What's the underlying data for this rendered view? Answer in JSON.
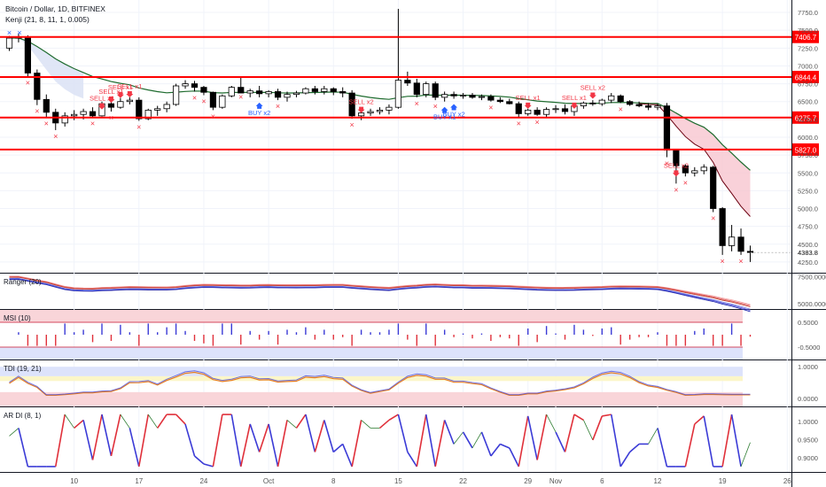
{
  "header": {
    "symbol_line": "Bitcoin / Dollar, 1D, BITFINEX",
    "indicator_line": "Kenji (21, 8, 11, 1, 0.005)"
  },
  "colors": {
    "up_body": "#ffffff",
    "down_body": "#000000",
    "sr_line": "#ff0000",
    "signal": "#f23645",
    "buy": "#2962ff",
    "ema_line": "#1e6b2e",
    "grid": "#f0f3fa",
    "fast_ma": "#6b0010",
    "band_fill": "#f7c6cf"
  },
  "x_axis": {
    "ticks": [
      {
        "label": "10",
        "i": 7
      },
      {
        "label": "17",
        "i": 14
      },
      {
        "label": "24",
        "i": 21
      },
      {
        "label": "Oct",
        "i": 28
      },
      {
        "label": "8",
        "i": 35
      },
      {
        "label": "15",
        "i": 42
      },
      {
        "label": "22",
        "i": 49
      },
      {
        "label": "29",
        "i": 56
      },
      {
        "label": "Nov",
        "i": 59
      },
      {
        "label": "6",
        "i": 64
      },
      {
        "label": "12",
        "i": 70
      },
      {
        "label": "19",
        "i": 77
      },
      {
        "label": "26",
        "i": 84
      }
    ]
  },
  "chart_data": [
    {
      "type": "candlestick",
      "title": "Bitcoin / Dollar, 1D, BITFINEX",
      "ylim": [
        4100,
        7850
      ],
      "y_ticks": [
        4250,
        4500,
        4750,
        5000,
        5250,
        5500,
        5750,
        6000,
        6250,
        6500,
        6750,
        7000,
        7250,
        7500,
        7750
      ],
      "last_price_label": "4383.8",
      "sr_levels": [
        {
          "value": 7406.7,
          "label": "7406.7"
        },
        {
          "value": 6844.4,
          "label": "6844.4"
        },
        {
          "value": 6275.7,
          "label": "6275.7"
        },
        {
          "value": 5827.0,
          "label": "5827.0"
        }
      ],
      "candles": [
        [
          7250,
          7420,
          7210,
          7390
        ],
        [
          7390,
          7460,
          7330,
          7410
        ],
        [
          7410,
          7430,
          6850,
          6900
        ],
        [
          6900,
          6950,
          6450,
          6530
        ],
        [
          6530,
          6600,
          6280,
          6350
        ],
        [
          6350,
          6400,
          6100,
          6200
        ],
        [
          6200,
          6350,
          6150,
          6300
        ],
        [
          6300,
          6380,
          6240,
          6320
        ],
        [
          6320,
          6400,
          6250,
          6360
        ],
        [
          6360,
          6420,
          6280,
          6300
        ],
        [
          6300,
          6500,
          6290,
          6470
        ],
        [
          6470,
          6540,
          6360,
          6420
        ],
        [
          6420,
          6550,
          6400,
          6500
        ],
        [
          6500,
          6560,
          6460,
          6520
        ],
        [
          6520,
          6560,
          6230,
          6260
        ],
        [
          6260,
          6400,
          6240,
          6380
        ],
        [
          6380,
          6440,
          6300,
          6400
        ],
        [
          6400,
          6500,
          6350,
          6460
        ],
        [
          6460,
          6750,
          6440,
          6720
        ],
        [
          6720,
          6800,
          6680,
          6750
        ],
        [
          6750,
          6790,
          6640,
          6700
        ],
        [
          6700,
          6720,
          6590,
          6630
        ],
        [
          6630,
          6640,
          6380,
          6420
        ],
        [
          6420,
          6600,
          6400,
          6580
        ],
        [
          6580,
          6720,
          6560,
          6700
        ],
        [
          6700,
          6850,
          6650,
          6620
        ],
        [
          6620,
          6680,
          6560,
          6650
        ],
        [
          6650,
          6720,
          6560,
          6610
        ],
        [
          6610,
          6660,
          6560,
          6640
        ],
        [
          6640,
          6680,
          6520,
          6560
        ],
        [
          6560,
          6640,
          6500,
          6600
        ],
        [
          6600,
          6650,
          6560,
          6620
        ],
        [
          6620,
          6700,
          6600,
          6680
        ],
        [
          6680,
          6720,
          6600,
          6640
        ],
        [
          6640,
          6720,
          6600,
          6680
        ],
        [
          6680,
          6700,
          6590,
          6640
        ],
        [
          6640,
          6700,
          6560,
          6620
        ],
        [
          6620,
          6660,
          6260,
          6300
        ],
        [
          6300,
          6380,
          6240,
          6340
        ],
        [
          6340,
          6400,
          6300,
          6360
        ],
        [
          6360,
          6420,
          6320,
          6380
        ],
        [
          6380,
          6460,
          6320,
          6420
        ],
        [
          6420,
          7800,
          6400,
          6800
        ],
        [
          6800,
          6920,
          6720,
          6760
        ],
        [
          6760,
          6820,
          6560,
          6600
        ],
        [
          6600,
          6780,
          6560,
          6750
        ],
        [
          6750,
          6780,
          6520,
          6560
        ],
        [
          6560,
          6640,
          6500,
          6600
        ],
        [
          6600,
          6640,
          6540,
          6580
        ],
        [
          6580,
          6620,
          6540,
          6590
        ],
        [
          6590,
          6620,
          6540,
          6560
        ],
        [
          6560,
          6600,
          6520,
          6570
        ],
        [
          6570,
          6600,
          6500,
          6520
        ],
        [
          6520,
          6560,
          6480,
          6500
        ],
        [
          6500,
          6540,
          6460,
          6470
        ],
        [
          6470,
          6500,
          6280,
          6330
        ],
        [
          6330,
          6400,
          6300,
          6380
        ],
        [
          6380,
          6420,
          6300,
          6320
        ],
        [
          6320,
          6420,
          6280,
          6390
        ],
        [
          6390,
          6450,
          6340,
          6400
        ],
        [
          6400,
          6460,
          6320,
          6360
        ],
        [
          6360,
          6460,
          6300,
          6440
        ],
        [
          6440,
          6500,
          6400,
          6480
        ],
        [
          6480,
          6520,
          6440,
          6470
        ],
        [
          6470,
          6540,
          6440,
          6520
        ],
        [
          6520,
          6620,
          6480,
          6580
        ],
        [
          6580,
          6600,
          6480,
          6500
        ],
        [
          6500,
          6520,
          6440,
          6460
        ],
        [
          6460,
          6500,
          6420,
          6440
        ],
        [
          6440,
          6480,
          6380,
          6420
        ],
        [
          6420,
          6470,
          6380,
          6440
        ],
        [
          6440,
          6480,
          5720,
          5820
        ],
        [
          5820,
          5820,
          5350,
          5600
        ],
        [
          5600,
          5620,
          5450,
          5500
        ],
        [
          5500,
          5580,
          5450,
          5530
        ],
        [
          5530,
          5620,
          5480,
          5580
        ],
        [
          5580,
          5600,
          4950,
          5000
        ],
        [
          5000,
          5020,
          4350,
          4480
        ],
        [
          4480,
          4770,
          4400,
          4600
        ],
        [
          4600,
          4720,
          4350,
          4400
        ],
        [
          4400,
          4480,
          4250,
          4383.8
        ]
      ],
      "signals": {
        "sell": [
          {
            "i": 13,
            "text": "SELL x1"
          },
          {
            "i": 38,
            "text": "SELL x2"
          },
          {
            "i": 56,
            "text": "SELL x1"
          },
          {
            "i": 61,
            "text": "SELL x1"
          },
          {
            "i": 63,
            "text": "SELL x2"
          },
          {
            "i": 72,
            "text": "SELL x2"
          }
        ],
        "sell_cluster": [
          {
            "i": 10,
            "text": "SELL x1"
          },
          {
            "i": 11,
            "text": "SELL x1"
          },
          {
            "i": 12,
            "text": "SELL x1"
          }
        ],
        "buy": [
          {
            "i": 27,
            "text": "BUY x2"
          },
          {
            "i": 47,
            "text": "BUY x1"
          },
          {
            "i": 48,
            "text": "BUY x2"
          }
        ]
      }
    },
    {
      "type": "band",
      "title": "Ranger (20)",
      "ylim": [
        4500,
        7800
      ],
      "y_ticks": [
        5000,
        7500
      ],
      "tick_labels": [
        "5000.0000",
        "7500.0000"
      ]
    },
    {
      "type": "bar",
      "title": "MSI (10)",
      "ylim": [
        -1,
        1
      ],
      "y_ticks": [
        0.5,
        -0.5
      ],
      "tick_labels": [
        "0.5000",
        "-0.5000"
      ]
    },
    {
      "type": "line",
      "title": "TDI (19, 21)",
      "ylim": [
        -0.25,
        1.2
      ],
      "y_ticks": [
        1,
        0
      ],
      "tick_labels": [
        "1.0000",
        "0.0000"
      ]
    },
    {
      "type": "line",
      "title": "AR DI (8, 1)",
      "ylim": [
        0.86,
        1.04
      ],
      "y_ticks": [
        1,
        0.95,
        0.9
      ],
      "tick_labels": [
        "1.0000",
        "0.9500",
        "0.9000"
      ]
    }
  ]
}
